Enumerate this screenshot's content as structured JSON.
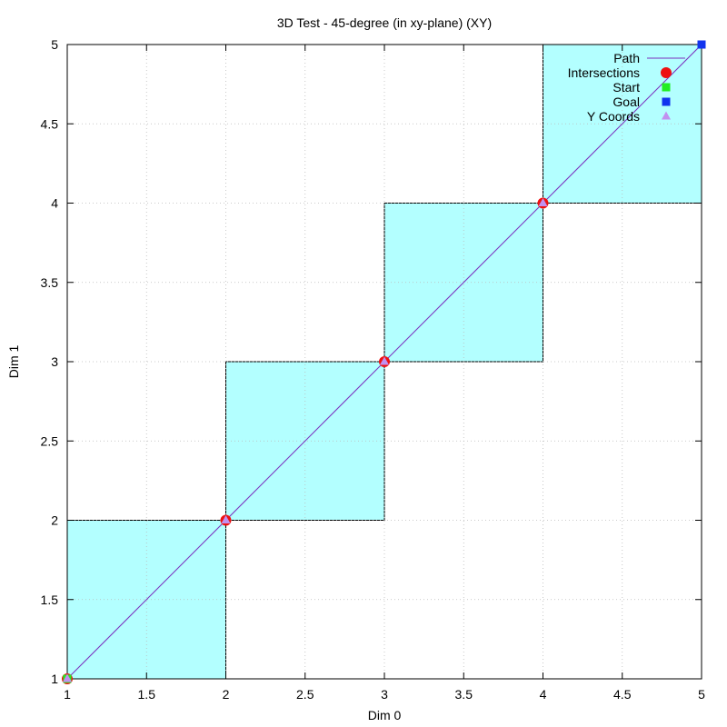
{
  "chart_data": {
    "type": "line",
    "title": "3D Test - 45-degree (in xy-plane) (XY)",
    "xlabel": "Dim 0",
    "ylabel": "Dim 1",
    "xlim": [
      1,
      5
    ],
    "ylim": [
      1,
      5
    ],
    "xticks": [
      1,
      1.5,
      2,
      2.5,
      3,
      3.5,
      4,
      4.5,
      5
    ],
    "yticks": [
      1,
      1.5,
      2,
      2.5,
      3,
      3.5,
      4,
      4.5,
      5
    ],
    "xtick_labels": [
      "1",
      "1.5",
      "2",
      "2.5",
      "3",
      "3.5",
      "4",
      "4.5",
      "5"
    ],
    "ytick_labels": [
      "1",
      "1.5",
      "2",
      "2.5",
      "3",
      "3.5",
      "4",
      "4.5",
      "5"
    ],
    "grid": true,
    "legend_position": "top-right",
    "cells": [
      {
        "x0": 1,
        "y0": 1,
        "x1": 2,
        "y1": 2
      },
      {
        "x0": 2,
        "y0": 2,
        "x1": 3,
        "y1": 3
      },
      {
        "x0": 3,
        "y0": 3,
        "x1": 4,
        "y1": 4
      },
      {
        "x0": 4,
        "y0": 4,
        "x1": 5,
        "y1": 5
      }
    ],
    "cell_color": "#b3ffff",
    "series": [
      {
        "name": "Path",
        "style": "line",
        "color": "#7b2fbe",
        "points": [
          [
            1,
            1
          ],
          [
            5,
            5
          ]
        ]
      },
      {
        "name": "Intersections",
        "style": "circle",
        "color": "#ee1111",
        "points": [
          [
            1,
            1
          ],
          [
            2,
            2
          ],
          [
            3,
            3
          ],
          [
            4,
            4
          ]
        ]
      },
      {
        "name": "Start",
        "style": "square",
        "color": "#22ee22",
        "points": [
          [
            1,
            1
          ]
        ]
      },
      {
        "name": "Goal",
        "style": "square",
        "color": "#1133ee",
        "points": [
          [
            5,
            5
          ]
        ]
      },
      {
        "name": "Y Coords",
        "style": "triangle",
        "color": "#c191f0",
        "points": [
          [
            1,
            1
          ],
          [
            2,
            2
          ],
          [
            3,
            3
          ],
          [
            4,
            4
          ]
        ]
      }
    ]
  }
}
